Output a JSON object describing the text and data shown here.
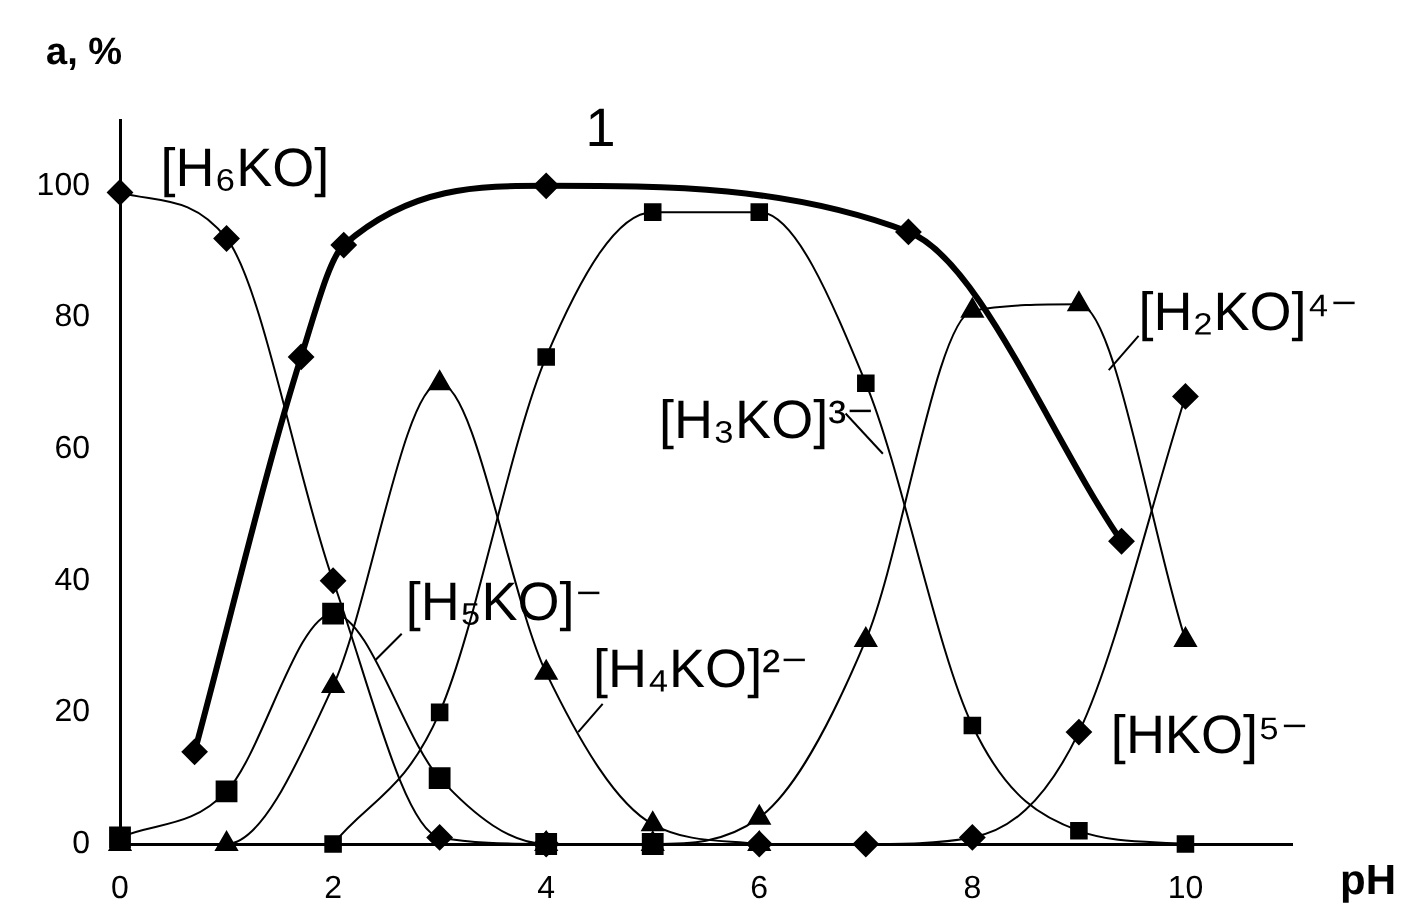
{
  "chart_data": {
    "type": "line",
    "xlabel": "pH",
    "ylabel": "a, %",
    "xlim": [
      0,
      11
    ],
    "ylim": [
      0,
      110
    ],
    "xticks": [
      0,
      2,
      4,
      6,
      8,
      10
    ],
    "yticks": [
      0,
      20,
      40,
      60,
      80,
      100
    ],
    "grid": false,
    "legend": false,
    "annotations": [
      {
        "text": "[H₅KO]⁻",
        "x": 2.4,
        "y": 28
      }
    ],
    "series": [
      {
        "name": "[H₆KO]",
        "color": "#000000",
        "marker": "diamond",
        "x": [
          0,
          1,
          2,
          3,
          4
        ],
        "values": [
          99,
          92,
          40,
          1,
          0
        ]
      },
      {
        "color": "#000000",
        "marker": "square",
        "x": [
          0,
          1,
          2,
          3,
          4,
          5
        ],
        "values": [
          1,
          8,
          35,
          10,
          0,
          0
        ]
      },
      {
        "name": "[H₄KO]²⁻",
        "color": "#000000",
        "marker": "triangle",
        "x": [
          0,
          1,
          2,
          3,
          4,
          5,
          6
        ],
        "values": [
          0,
          0,
          24,
          70,
          26,
          3,
          0
        ]
      },
      {
        "name": "[H₃KO]³⁻",
        "color": "#000000",
        "marker": "square",
        "x": [
          2,
          3,
          4,
          5,
          6,
          7,
          8,
          9,
          10
        ],
        "values": [
          0,
          20,
          74,
          96,
          96,
          70,
          18,
          2,
          0
        ]
      },
      {
        "name": "[H₂KO]⁴⁻",
        "color": "#000000",
        "marker": "triangle",
        "x": [
          4,
          5,
          6,
          7,
          8,
          9,
          10
        ],
        "values": [
          0,
          0,
          4,
          31,
          81,
          82,
          31
        ]
      },
      {
        "name": "[HKO]⁵⁻",
        "color": "#000000",
        "marker": "diamond",
        "x": [
          6,
          7,
          8,
          9,
          10
        ],
        "values": [
          0,
          0,
          1,
          17,
          68
        ]
      },
      {
        "name": "1",
        "color": "#000000",
        "marker": "diamond",
        "x": [
          0.7,
          1.7,
          2.1,
          4,
          7.4,
          9.4
        ],
        "values": [
          14,
          74,
          91,
          100,
          93,
          46
        ]
      }
    ]
  }
}
